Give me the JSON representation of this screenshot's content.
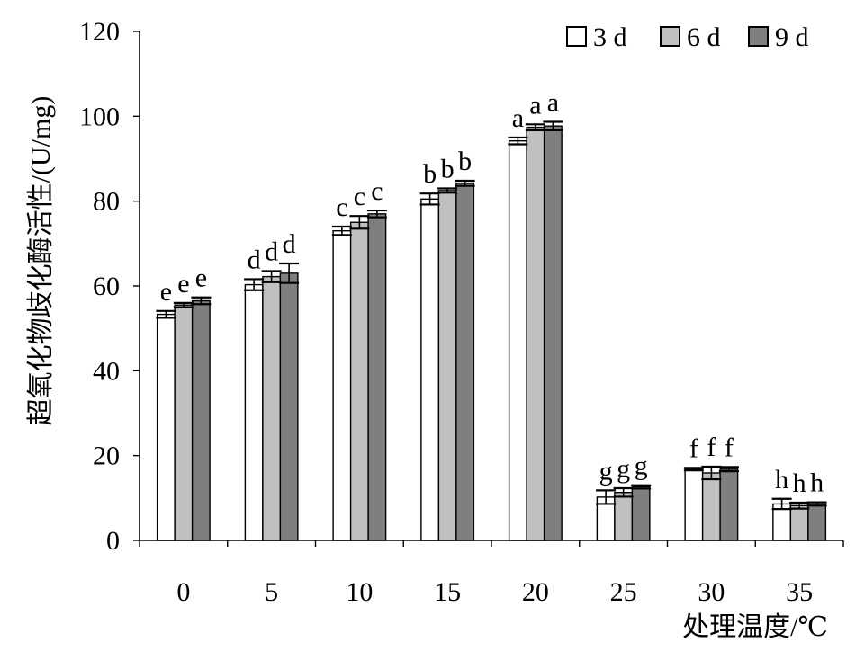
{
  "chart_data": {
    "type": "bar",
    "ylabel": "超氧化物歧化酶活性/(U/mg)",
    "xlabel": "处理温度/℃",
    "ylim": [
      0,
      120
    ],
    "yticks": [
      "0",
      "20",
      "40",
      "60",
      "80",
      "100",
      "120"
    ],
    "categories": [
      "0",
      "5",
      "10",
      "15",
      "20",
      "25",
      "30",
      "35"
    ],
    "grid": false,
    "legend_position": "top-right",
    "series": [
      {
        "name": "3 d",
        "color": "#ffffff",
        "values": [
          53.3,
          60.3,
          73.0,
          80.5,
          94.2,
          10.2,
          16.8,
          8.6
        ],
        "errors": [
          0.8,
          1.3,
          1.0,
          1.3,
          0.8,
          1.6,
          0.3,
          1.2
        ],
        "labels": [
          "e",
          "d",
          "c",
          "b",
          "a",
          "g",
          "f",
          "h"
        ]
      },
      {
        "name": "6 d",
        "color": "#c0c0c0",
        "values": [
          55.5,
          62.2,
          75.0,
          82.5,
          97.4,
          11.3,
          15.9,
          8.2
        ],
        "errors": [
          0.5,
          1.3,
          1.5,
          0.5,
          0.7,
          1.0,
          1.5,
          0.7
        ],
        "labels": [
          "e",
          "d",
          "c",
          "b",
          "a",
          "g",
          "f",
          "h"
        ]
      },
      {
        "name": "9 d",
        "color": "#7f7f7f",
        "values": [
          56.5,
          63.0,
          77.0,
          84.2,
          97.7,
          12.6,
          16.8,
          8.6
        ],
        "errors": [
          0.8,
          2.3,
          0.8,
          0.6,
          1.0,
          0.4,
          0.5,
          0.4
        ],
        "labels": [
          "e",
          "d",
          "c",
          "b",
          "a",
          "g",
          "f",
          "h"
        ]
      }
    ]
  }
}
